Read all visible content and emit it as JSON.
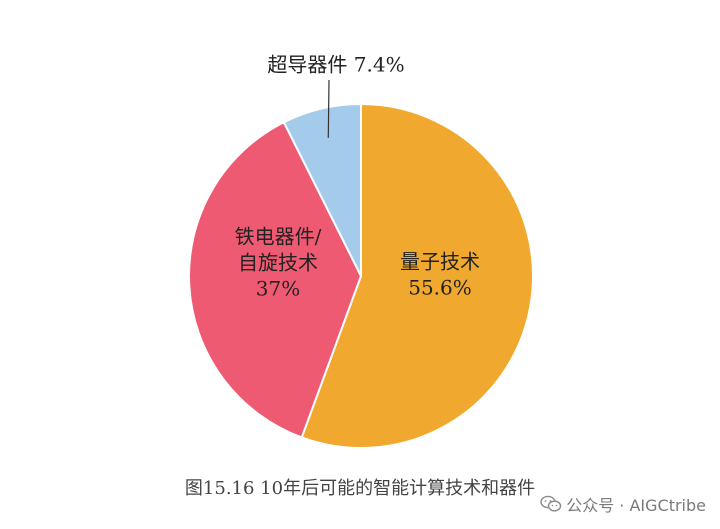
{
  "chart_data": {
    "type": "pie",
    "caption": "图15.16  10年后可能的智能计算技术和器件",
    "slices": [
      {
        "label_lines": [
          "量子技术",
          "55.6%"
        ],
        "value": 55.6,
        "color": "#f0a92e"
      },
      {
        "label_lines": [
          "铁电器件/",
          "自旋技术",
          "37%"
        ],
        "value": 37,
        "color": "#ef5a73"
      },
      {
        "label_lines": [
          "超导器件 7.4%"
        ],
        "value": 7.4,
        "color": "#a4cbec"
      }
    ],
    "start": "12 o'clock",
    "direction": "clockwise"
  },
  "watermark": {
    "text": "公众号 · AIGCtribe",
    "icon": "wechat-icon"
  }
}
